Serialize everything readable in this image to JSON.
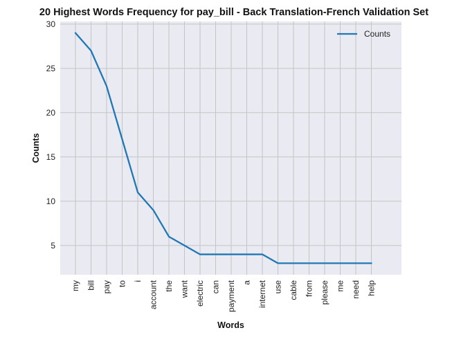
{
  "chart_data": {
    "type": "line",
    "title": "20 Highest Words Frequency for pay_bill - Back Translation-French Validation Set",
    "xlabel": "Words",
    "ylabel": "Counts",
    "categories": [
      "my",
      "bill",
      "pay",
      "to",
      "i",
      "account",
      "the",
      "want",
      "electric",
      "can",
      "payment",
      "a",
      "internet",
      "use",
      "cable",
      "from",
      "please",
      "me",
      "need",
      "help"
    ],
    "series": [
      {
        "name": "Counts",
        "values": [
          29,
          27,
          23,
          17,
          11,
          9,
          6,
          5,
          4,
          4,
          4,
          4,
          4,
          3,
          3,
          3,
          3,
          3,
          3,
          3
        ]
      }
    ],
    "ylim": [
      1.7,
      30.3
    ],
    "yticks": [
      5,
      10,
      15,
      20,
      25,
      30
    ],
    "grid": true,
    "legend": "top-right",
    "colors": {
      "line": "#1f77b4",
      "background": "#eaeaf2",
      "grid": "#c4c4c4"
    }
  }
}
